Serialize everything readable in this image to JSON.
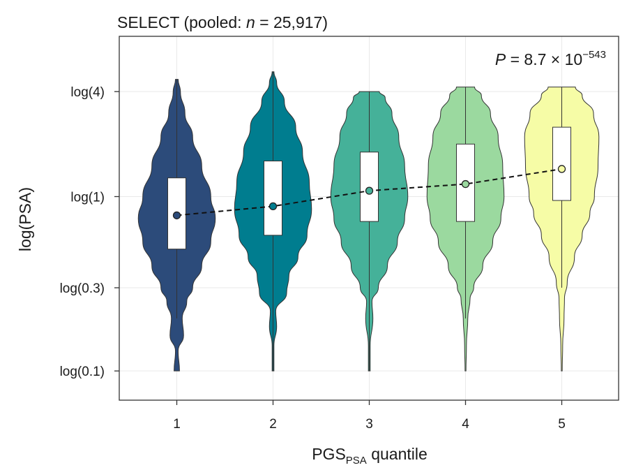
{
  "chart_data": {
    "type": "violin",
    "title_prefix": "SELECT (pooled: ",
    "title_n_symbol": "n",
    "title_suffix": " = 25,917)",
    "annotation": {
      "p_symbol": "P",
      "p_text": " = 8.7 × 10",
      "p_exponent": "−543"
    },
    "xlabel_main": "PGS",
    "xlabel_sub": "PSA",
    "xlabel_rest": " quantile",
    "ylabel": "log(PSA)",
    "y_scale": "log",
    "y_ticks": [
      {
        "value": 0.1,
        "label": "log(0.1)"
      },
      {
        "value": 0.3,
        "label": "log(0.3)"
      },
      {
        "value": 1,
        "label": "log(1)"
      },
      {
        "value": 4,
        "label": "log(4)"
      }
    ],
    "ylim": [
      0.068,
      8.3
    ],
    "categories": [
      "1",
      "2",
      "3",
      "4",
      "5"
    ],
    "grid": true,
    "series": [
      {
        "category": "1",
        "color": "#2c4b7a",
        "mean": 0.78,
        "q1": 0.5,
        "q3": 1.28,
        "whisker_low": 0.2,
        "whisker_high": 4.7,
        "violin_shape": [
          [
            0.1,
            0.06
          ],
          [
            0.13,
            0.03
          ],
          [
            0.16,
            0.15
          ],
          [
            0.2,
            0.12
          ],
          [
            0.25,
            0.22
          ],
          [
            0.3,
            0.35
          ],
          [
            0.4,
            0.55
          ],
          [
            0.55,
            0.75
          ],
          [
            0.75,
            0.85
          ],
          [
            1,
            0.75
          ],
          [
            1.5,
            0.55
          ],
          [
            2.2,
            0.35
          ],
          [
            3,
            0.18
          ],
          [
            4,
            0.08
          ],
          [
            4.7,
            0.03
          ]
        ]
      },
      {
        "category": "2",
        "color": "#007d8f",
        "mean": 0.88,
        "q1": 0.6,
        "q3": 1.6,
        "whisker_low": 0.1,
        "whisker_high": 5.2,
        "violin_shape": [
          [
            0.1,
            0.02
          ],
          [
            0.14,
            0.02
          ],
          [
            0.18,
            0.08
          ],
          [
            0.22,
            0.06
          ],
          [
            0.28,
            0.3
          ],
          [
            0.35,
            0.35
          ],
          [
            0.45,
            0.55
          ],
          [
            0.6,
            0.75
          ],
          [
            0.85,
            0.85
          ],
          [
            1.2,
            0.8
          ],
          [
            1.8,
            0.65
          ],
          [
            2.5,
            0.5
          ],
          [
            3.5,
            0.25
          ],
          [
            4.5,
            0.08
          ],
          [
            5.2,
            0.02
          ]
        ]
      },
      {
        "category": "3",
        "color": "#45b199",
        "mean": 1.08,
        "q1": 0.72,
        "q3": 1.8,
        "whisker_low": 0.1,
        "whisker_high": 4.0,
        "violin_shape": [
          [
            0.1,
            0.02
          ],
          [
            0.14,
            0.02
          ],
          [
            0.2,
            0.08
          ],
          [
            0.25,
            0.06
          ],
          [
            0.3,
            0.2
          ],
          [
            0.4,
            0.4
          ],
          [
            0.55,
            0.62
          ],
          [
            0.75,
            0.78
          ],
          [
            1,
            0.85
          ],
          [
            1.5,
            0.78
          ],
          [
            2.2,
            0.65
          ],
          [
            3,
            0.5
          ],
          [
            3.7,
            0.35
          ],
          [
            4,
            0.22
          ]
        ]
      },
      {
        "category": "4",
        "color": "#9bd99f",
        "mean": 1.18,
        "q1": 0.72,
        "q3": 2.0,
        "whisker_low": 0.2,
        "whisker_high": 4.25,
        "violin_shape": [
          [
            0.1,
            0.01
          ],
          [
            0.14,
            0.02
          ],
          [
            0.2,
            0.05
          ],
          [
            0.26,
            0.1
          ],
          [
            0.3,
            0.18
          ],
          [
            0.4,
            0.38
          ],
          [
            0.55,
            0.6
          ],
          [
            0.75,
            0.78
          ],
          [
            1,
            0.85
          ],
          [
            1.5,
            0.82
          ],
          [
            2.2,
            0.72
          ],
          [
            3,
            0.55
          ],
          [
            3.8,
            0.35
          ],
          [
            4.25,
            0.2
          ]
        ]
      },
      {
        "category": "5",
        "color": "#f6fca6",
        "mean": 1.44,
        "q1": 0.95,
        "q3": 2.5,
        "whisker_low": 0.3,
        "whisker_high": 4.25,
        "violin_shape": [
          [
            0.1,
            0.01
          ],
          [
            0.14,
            0.02
          ],
          [
            0.2,
            0.05
          ],
          [
            0.26,
            0.06
          ],
          [
            0.32,
            0.12
          ],
          [
            0.45,
            0.28
          ],
          [
            0.6,
            0.45
          ],
          [
            0.8,
            0.62
          ],
          [
            1,
            0.72
          ],
          [
            1.5,
            0.8
          ],
          [
            2.2,
            0.82
          ],
          [
            3,
            0.7
          ],
          [
            3.8,
            0.45
          ],
          [
            4.25,
            0.3
          ]
        ]
      }
    ]
  }
}
